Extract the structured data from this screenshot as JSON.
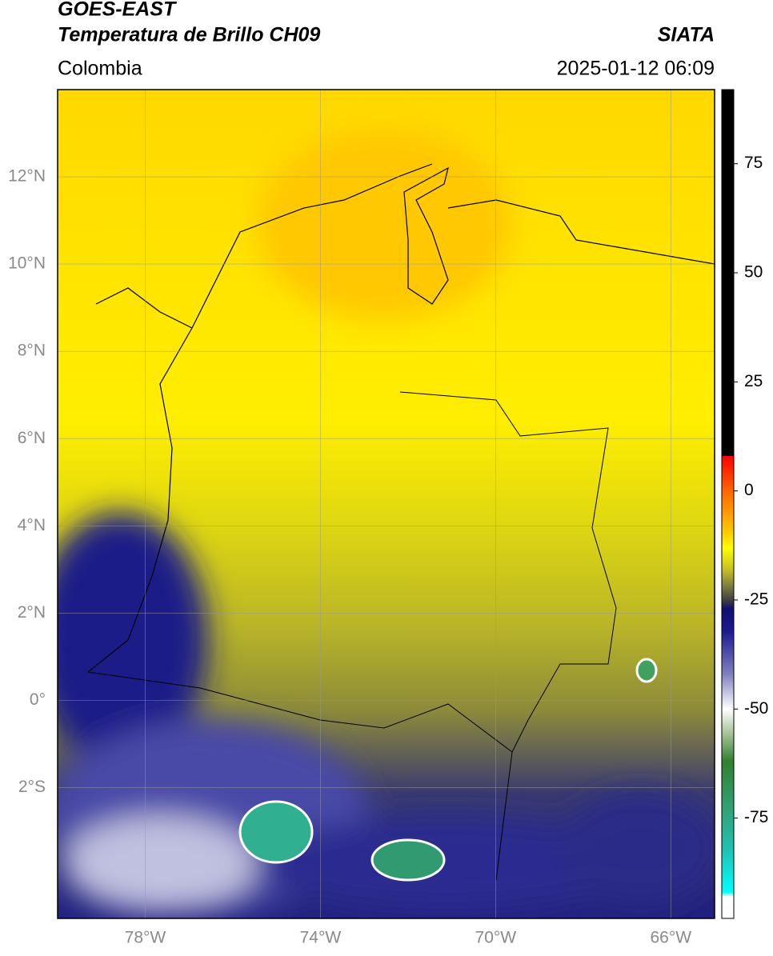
{
  "header": {
    "title_line1": "GOES-EAST",
    "title_line2": "Temperatura de Brillo CH09",
    "agency": "SIATA",
    "region": "Colombia",
    "datetime": "2025-01-12 06:09"
  },
  "map": {
    "xlim": [
      -80,
      -65
    ],
    "ylim": [
      -5,
      14
    ],
    "grid": true,
    "xticks": [
      {
        "value": -78,
        "label": "78°W"
      },
      {
        "value": -74,
        "label": "74°W"
      },
      {
        "value": -70,
        "label": "70°W"
      },
      {
        "value": -66,
        "label": "66°W"
      }
    ],
    "yticks": [
      {
        "value": 12,
        "label": "12°N"
      },
      {
        "value": 10,
        "label": "10°N"
      },
      {
        "value": 8,
        "label": "8°N"
      },
      {
        "value": 6,
        "label": "6°N"
      },
      {
        "value": 4,
        "label": "4°N"
      },
      {
        "value": 2,
        "label": "2°N"
      },
      {
        "value": 0,
        "label": "0°"
      },
      {
        "value": -2,
        "label": "2°S"
      }
    ]
  },
  "colorbar": {
    "lim": [
      -98,
      92
    ],
    "ticks": [
      75,
      50,
      25,
      0,
      -25,
      -50,
      -75
    ],
    "stops": [
      {
        "value": 92,
        "color": "#000000"
      },
      {
        "value": 8,
        "color": "#000000"
      },
      {
        "value": 8,
        "color": "#ff0000"
      },
      {
        "value": 0,
        "color": "#ff6600"
      },
      {
        "value": -10,
        "color": "#ffd000"
      },
      {
        "value": -13,
        "color": "#ffff00"
      },
      {
        "value": -18,
        "color": "#c8c020"
      },
      {
        "value": -22,
        "color": "#7a7a40"
      },
      {
        "value": -25,
        "color": "#404040"
      },
      {
        "value": -27,
        "color": "#101070"
      },
      {
        "value": -32,
        "color": "#1a1a90"
      },
      {
        "value": -42,
        "color": "#8080c0"
      },
      {
        "value": -50,
        "color": "#ffffff"
      },
      {
        "value": -56,
        "color": "#a0c090"
      },
      {
        "value": -62,
        "color": "#308030"
      },
      {
        "value": -72,
        "color": "#30a070"
      },
      {
        "value": -82,
        "color": "#20c0b0"
      },
      {
        "value": -92,
        "color": "#00ffff"
      },
      {
        "value": -93,
        "color": "#ffffff"
      },
      {
        "value": -98,
        "color": "#ffffff"
      }
    ]
  }
}
